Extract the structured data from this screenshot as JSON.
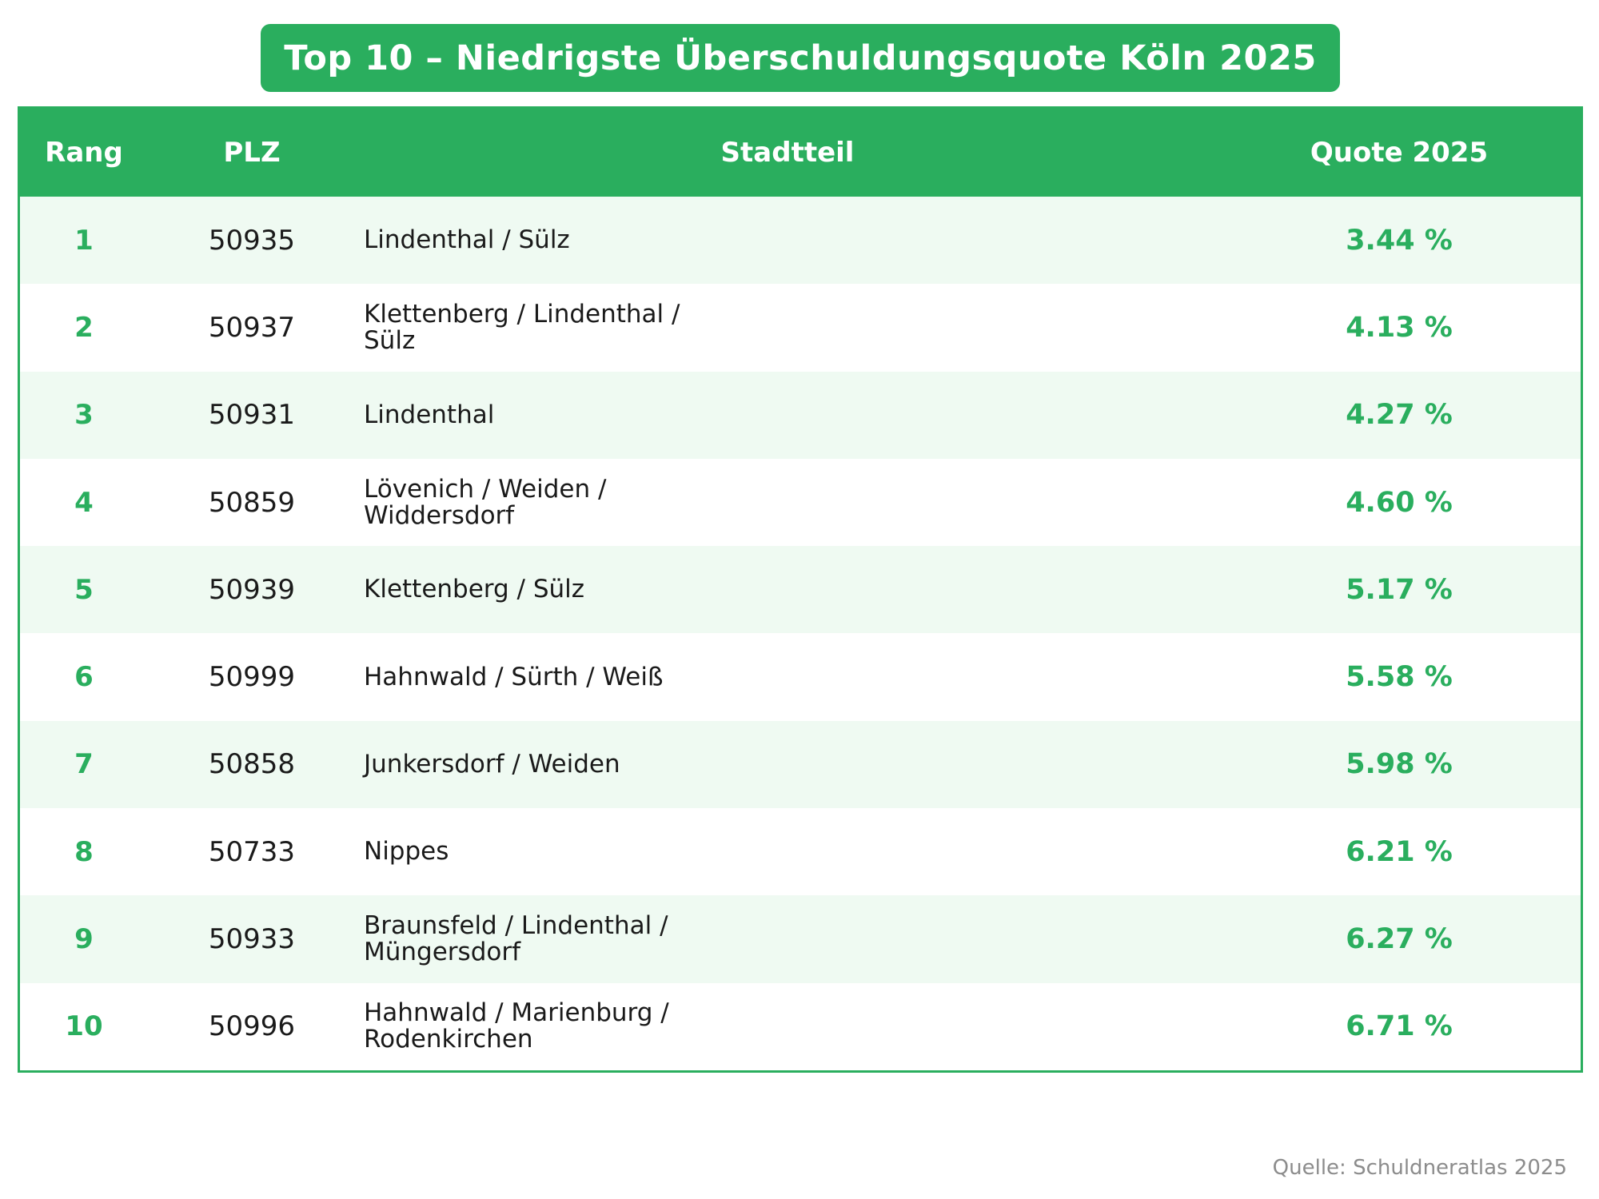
{
  "chart_data": {
    "type": "table",
    "title": "Top 10 – Niedrigste Überschuldungsquote Köln 2025",
    "columns": [
      "Rang",
      "PLZ",
      "Stadtteil",
      "Quote 2025"
    ],
    "rows": [
      {
        "rang": "1",
        "plz": "50935",
        "stadtteil": "Lindenthal / Sülz",
        "quote": "3.44 %"
      },
      {
        "rang": "2",
        "plz": "50937",
        "stadtteil": "Klettenberg / Lindenthal / Sülz",
        "quote": "4.13 %"
      },
      {
        "rang": "3",
        "plz": "50931",
        "stadtteil": "Lindenthal",
        "quote": "4.27 %"
      },
      {
        "rang": "4",
        "plz": "50859",
        "stadtteil": "Lövenich / Weiden / Widdersdorf",
        "quote": "4.60 %"
      },
      {
        "rang": "5",
        "plz": "50939",
        "stadtteil": "Klettenberg / Sülz",
        "quote": "5.17 %"
      },
      {
        "rang": "6",
        "plz": "50999",
        "stadtteil": "Hahnwald / Sürth / Weiß",
        "quote": "5.58 %"
      },
      {
        "rang": "7",
        "plz": "50858",
        "stadtteil": "Junkersdorf / Weiden",
        "quote": "5.98 %"
      },
      {
        "rang": "8",
        "plz": "50733",
        "stadtteil": "Nippes",
        "quote": "6.21 %"
      },
      {
        "rang": "9",
        "plz": "50933",
        "stadtteil": "Braunsfeld / Lindenthal / Müngersdorf",
        "quote": "6.27 %"
      },
      {
        "rang": "10",
        "plz": "50996",
        "stadtteil": "Hahnwald / Marienburg / Rodenkirchen",
        "quote": "6.71 %"
      }
    ],
    "source": "Quelle: Schuldneratlas 2025"
  },
  "colors": {
    "accent": "#2aae5e",
    "row_alt": "#effaf2",
    "text": "#1a1a1a",
    "source_text": "#8c8c8c"
  }
}
